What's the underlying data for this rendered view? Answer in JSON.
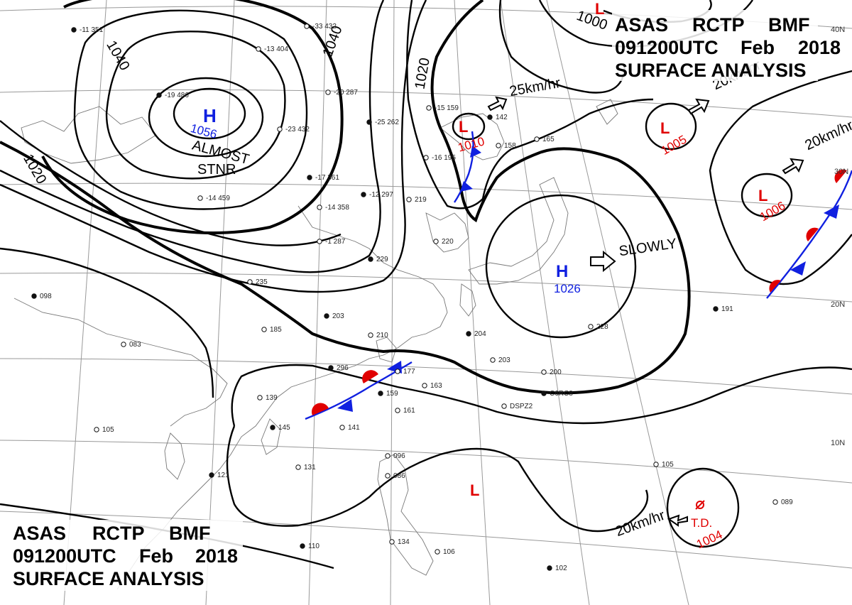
{
  "header_top": {
    "line1": [
      "ASAS",
      "RCTP",
      "BMF"
    ],
    "line2": [
      "091200UTC",
      "Feb",
      "2018"
    ],
    "line3": "SURFACE ANALYSIS"
  },
  "header_bottom": {
    "line1": [
      "ASAS",
      "RCTP",
      "BMF"
    ],
    "line2": [
      "091200UTC",
      "Feb",
      "2018"
    ],
    "line3": "SURFACE ANALYSIS"
  },
  "latitude_labels": [
    "40N",
    "30N",
    "20N",
    "10N"
  ],
  "isobar_labels": [
    "1040",
    "1040",
    "1020",
    "1020",
    "1000"
  ],
  "pressure_systems": [
    {
      "type": "H",
      "value": "1056",
      "note1": "ALMOST",
      "note2": "STNR",
      "color": "#1020e0"
    },
    {
      "type": "L",
      "value": "1010",
      "color": "#e00000"
    },
    {
      "type": "L",
      "value": "1005",
      "color": "#e00000"
    },
    {
      "type": "L",
      "value": "1006",
      "color": "#e00000"
    },
    {
      "type": "H",
      "value": "1026",
      "color": "#1020e0"
    },
    {
      "type": "L",
      "value": "",
      "color": "#e00000"
    },
    {
      "type": "L",
      "value": "",
      "color": "#e00000"
    },
    {
      "type": "TD",
      "value": "1004",
      "label": "T.D.",
      "color": "#e00000"
    }
  ],
  "motion_labels": {
    "low_1010": "25km/hr",
    "low_1005": "20km/hr",
    "low_1006": "20km/hr",
    "high_1026": "SLOWLY",
    "td": "20km/hr"
  },
  "station_obs": [
    {
      "text": "-11 351"
    },
    {
      "text": "-13 404"
    },
    {
      "text": "-33 432"
    },
    {
      "text": "-19 486"
    },
    {
      "text": "-20 287"
    },
    {
      "text": "-15 159"
    },
    {
      "text": "-25 262"
    },
    {
      "text": "-23 432"
    },
    {
      "text": "-16 195"
    },
    {
      "text": "-17 361"
    },
    {
      "text": "-14 358"
    },
    {
      "text": "-14 459"
    },
    {
      "text": "-12 297"
    },
    {
      "text": "219"
    },
    {
      "text": "-1 287"
    },
    {
      "text": "229"
    },
    {
      "text": "220"
    },
    {
      "text": "235"
    },
    {
      "text": "203"
    },
    {
      "text": "185"
    },
    {
      "text": "210"
    },
    {
      "text": "204"
    },
    {
      "text": "203"
    },
    {
      "text": "200"
    },
    {
      "text": "296"
    },
    {
      "text": "177"
    },
    {
      "text": "163"
    },
    {
      "text": "159"
    },
    {
      "text": "161"
    },
    {
      "text": "139"
    },
    {
      "text": "145"
    },
    {
      "text": "141"
    },
    {
      "text": "131"
    },
    {
      "text": "121"
    },
    {
      "text": "105"
    },
    {
      "text": "083"
    },
    {
      "text": "098"
    },
    {
      "text": "096"
    },
    {
      "text": "086"
    },
    {
      "text": "110"
    },
    {
      "text": "134"
    },
    {
      "text": "106"
    },
    {
      "text": "102"
    },
    {
      "text": "105"
    },
    {
      "text": "089"
    },
    {
      "text": "191"
    },
    {
      "text": "228"
    },
    {
      "text": "165"
    },
    {
      "text": "142"
    },
    {
      "text": "158"
    },
    {
      "text": "DSPZ2"
    },
    {
      "text": "C6RC8"
    }
  ]
}
